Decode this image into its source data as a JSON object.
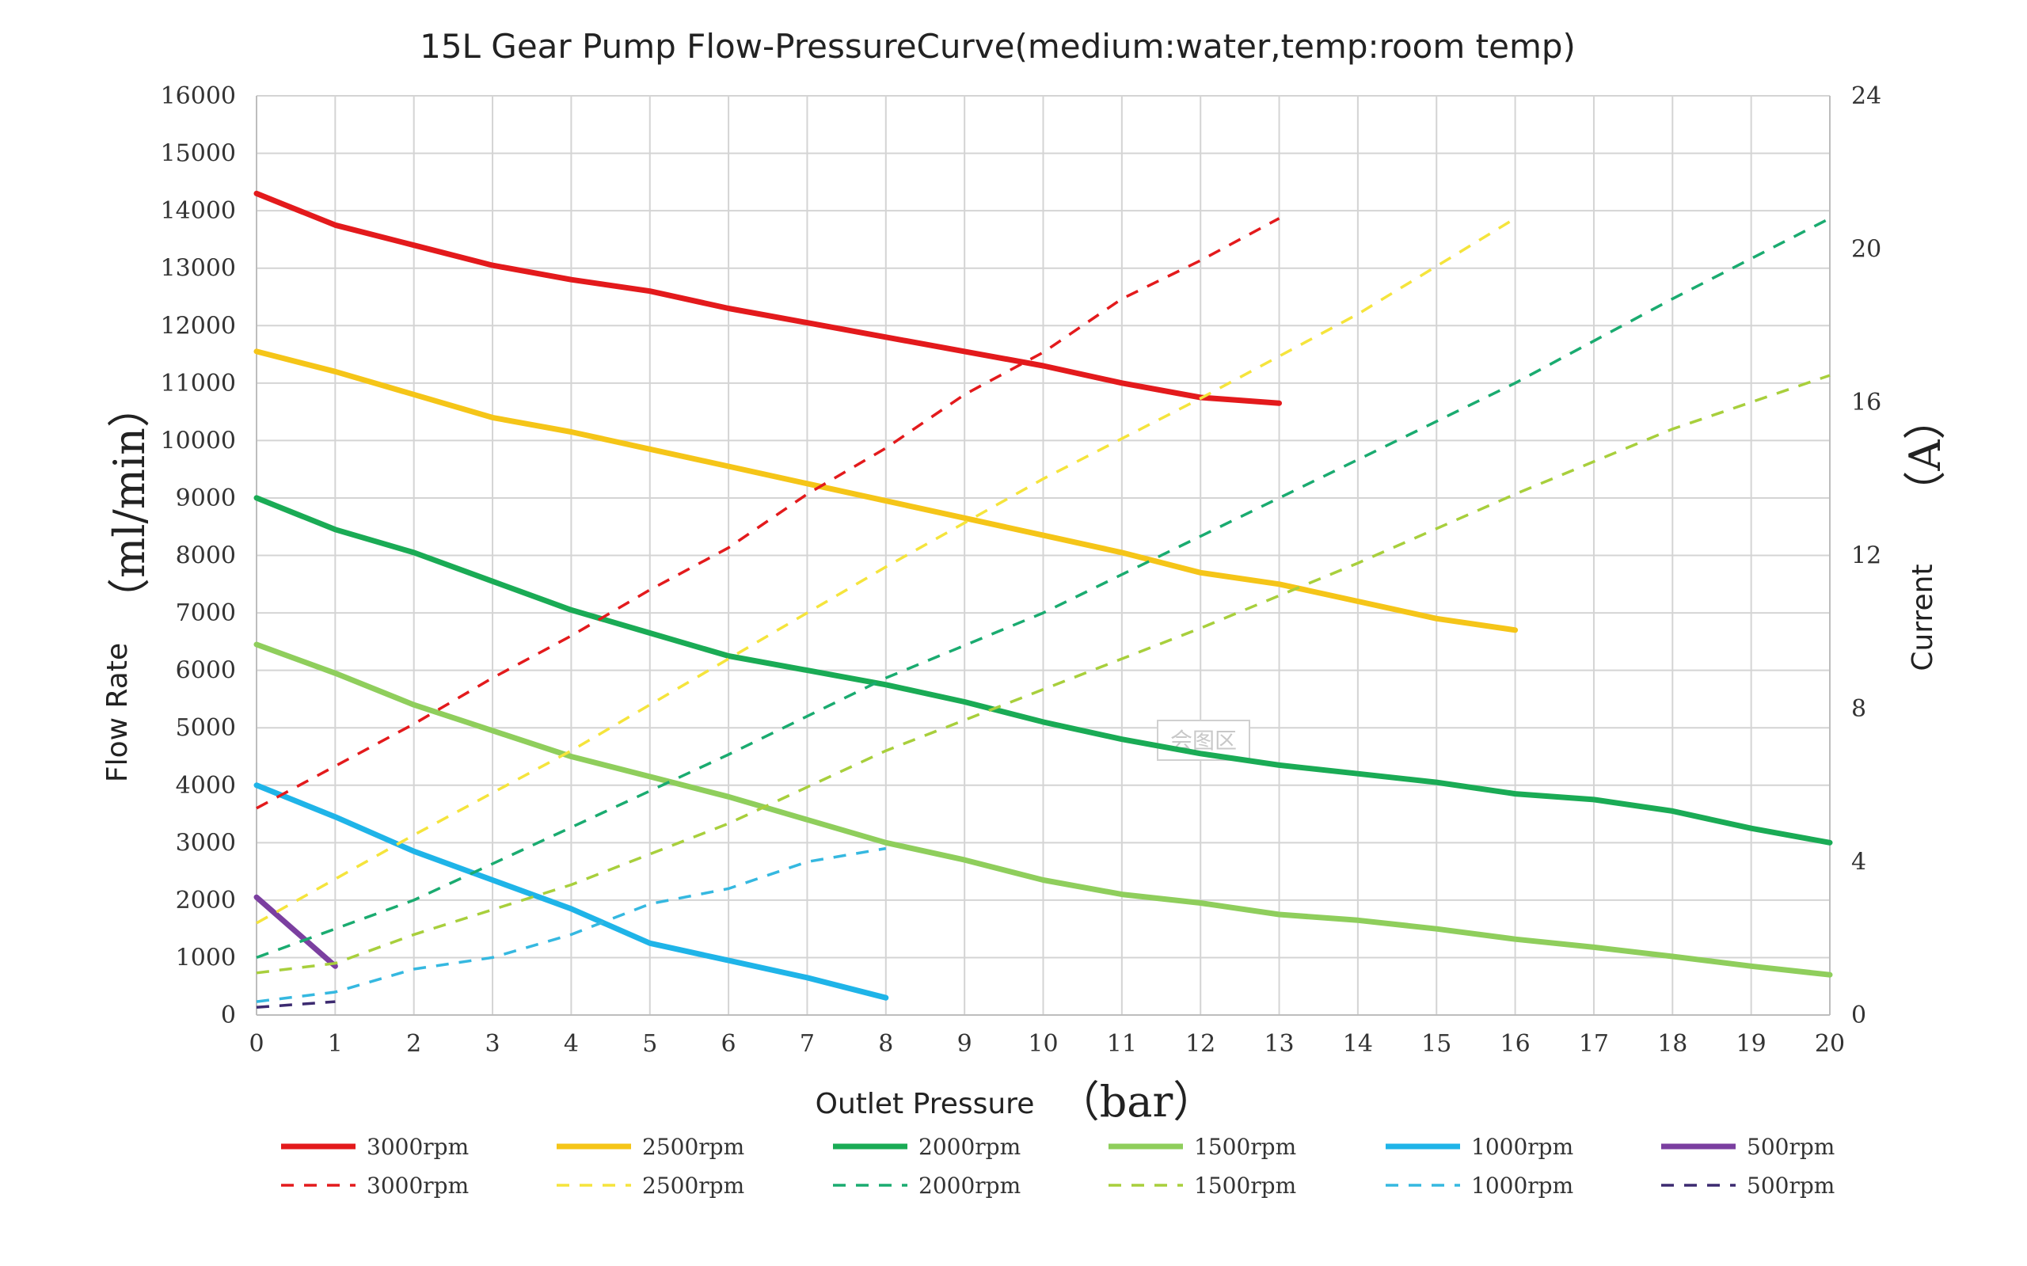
{
  "chart_data": {
    "type": "line",
    "title": "15L Gear Pump Flow-PressureCurve(medium:water,temp:room temp)",
    "xlabel": "Outlet Pressure",
    "xlabel_unit": "（bar）",
    "ylabel": "Flow Rate",
    "ylabel_unit": "（ml/min）",
    "y2label": "Current",
    "y2label_unit": "（A）",
    "xlim": [
      0,
      20
    ],
    "ylim": [
      0,
      16000
    ],
    "y2lim": [
      0,
      24
    ],
    "x_ticks": [
      0,
      1,
      2,
      3,
      4,
      5,
      6,
      7,
      8,
      9,
      10,
      11,
      12,
      13,
      14,
      15,
      16,
      17,
      18,
      19,
      20
    ],
    "y_ticks": [
      0,
      1000,
      2000,
      3000,
      4000,
      5000,
      6000,
      7000,
      8000,
      9000,
      10000,
      11000,
      12000,
      13000,
      14000,
      15000,
      16000
    ],
    "y2_ticks": [
      0,
      4,
      8,
      12,
      16,
      20,
      24
    ],
    "grid": true,
    "legend_position": "bottom",
    "watermark": "会图区",
    "series": [
      {
        "name": "3000rpm",
        "axis": "left",
        "style": "solid",
        "color": "#e31a1c",
        "x": [
          0,
          1,
          2,
          3,
          4,
          5,
          6,
          7,
          8,
          9,
          10,
          11,
          12,
          13
        ],
        "y": [
          14300,
          13750,
          13400,
          13050,
          12800,
          12600,
          12300,
          12050,
          11800,
          11550,
          11300,
          11000,
          10750,
          10650
        ]
      },
      {
        "name": "2500rpm",
        "axis": "left",
        "style": "solid",
        "color": "#f5c518",
        "x": [
          0,
          1,
          2,
          3,
          4,
          5,
          6,
          7,
          8,
          9,
          10,
          11,
          12,
          13,
          14,
          15,
          16
        ],
        "y": [
          11550,
          11200,
          10800,
          10400,
          10150,
          9850,
          9550,
          9250,
          8950,
          8650,
          8350,
          8050,
          7700,
          7500,
          7200,
          6900,
          6700
        ]
      },
      {
        "name": "2000rpm",
        "axis": "left",
        "style": "solid",
        "color": "#1aab55",
        "x": [
          0,
          1,
          2,
          3,
          4,
          5,
          6,
          7,
          8,
          9,
          10,
          11,
          12,
          13,
          14,
          15,
          16,
          17,
          18,
          19,
          20
        ],
        "y": [
          9000,
          8450,
          8050,
          7550,
          7050,
          6650,
          6250,
          6000,
          5750,
          5450,
          5100,
          4800,
          4550,
          4350,
          4200,
          4050,
          3850,
          3750,
          3550,
          3250,
          3000
        ]
      },
      {
        "name": "1500rpm",
        "axis": "left",
        "style": "solid",
        "color": "#8fce5c",
        "x": [
          0,
          1,
          2,
          3,
          4,
          5,
          6,
          7,
          8,
          9,
          10,
          11,
          12,
          13,
          14,
          15,
          16,
          17,
          18,
          19,
          20
        ],
        "y": [
          6450,
          5950,
          5400,
          4950,
          4500,
          4150,
          3800,
          3400,
          3000,
          2700,
          2350,
          2100,
          1950,
          1750,
          1650,
          1500,
          1320,
          1180,
          1020,
          850,
          700
        ]
      },
      {
        "name": "1000rpm",
        "axis": "left",
        "style": "solid",
        "color": "#1fb4e8",
        "x": [
          0,
          1,
          2,
          3,
          4,
          5,
          6,
          7,
          8
        ],
        "y": [
          4000,
          3450,
          2850,
          2350,
          1850,
          1250,
          950,
          650,
          300
        ]
      },
      {
        "name": "500rpm",
        "axis": "left",
        "style": "solid",
        "color": "#7b3fa0",
        "x": [
          0,
          1
        ],
        "y": [
          2050,
          850
        ]
      },
      {
        "name": "3000rpm",
        "axis": "right",
        "style": "dashed",
        "color": "#e31a1c",
        "x": [
          0,
          1,
          2,
          3,
          4,
          5,
          6,
          7,
          8,
          9,
          10,
          11,
          12,
          13
        ],
        "y": [
          5.4,
          6.5,
          7.6,
          8.8,
          9.9,
          11.1,
          12.2,
          13.6,
          14.8,
          16.2,
          17.3,
          18.7,
          19.7,
          20.8
        ]
      },
      {
        "name": "2500rpm",
        "axis": "right",
        "style": "dashed",
        "color": "#f5e43c",
        "x": [
          0,
          2,
          4,
          6,
          8,
          10,
          12,
          14,
          16
        ],
        "y": [
          2.4,
          4.7,
          6.9,
          9.3,
          11.7,
          14.0,
          16.1,
          18.3,
          20.8
        ]
      },
      {
        "name": "2000rpm",
        "axis": "right",
        "style": "dashed",
        "color": "#1aab70",
        "x": [
          0,
          2,
          4,
          6,
          8,
          10,
          12,
          14,
          16,
          18,
          20
        ],
        "y": [
          1.5,
          3.0,
          4.9,
          6.8,
          8.8,
          10.5,
          12.5,
          14.5,
          16.5,
          18.7,
          20.8
        ]
      },
      {
        "name": "1500rpm",
        "axis": "right",
        "style": "dashed",
        "color": "#a8cf3c",
        "x": [
          0,
          1,
          2,
          4,
          6,
          8,
          10,
          12,
          14,
          16,
          18,
          20
        ],
        "y": [
          1.1,
          1.35,
          2.1,
          3.4,
          5.0,
          6.9,
          8.5,
          10.1,
          11.8,
          13.6,
          15.3,
          16.7
        ]
      },
      {
        "name": "1000rpm",
        "axis": "right",
        "style": "dashed",
        "color": "#35b8e0",
        "x": [
          0,
          1,
          2,
          3,
          4,
          5,
          6,
          7,
          8
        ],
        "y": [
          0.35,
          0.6,
          1.2,
          1.5,
          2.1,
          2.9,
          3.3,
          4.0,
          4.35
        ]
      },
      {
        "name": "500rpm",
        "axis": "right",
        "style": "dashed",
        "color": "#3c2a70",
        "x": [
          0,
          1
        ],
        "y": [
          0.2,
          0.35
        ]
      }
    ]
  }
}
